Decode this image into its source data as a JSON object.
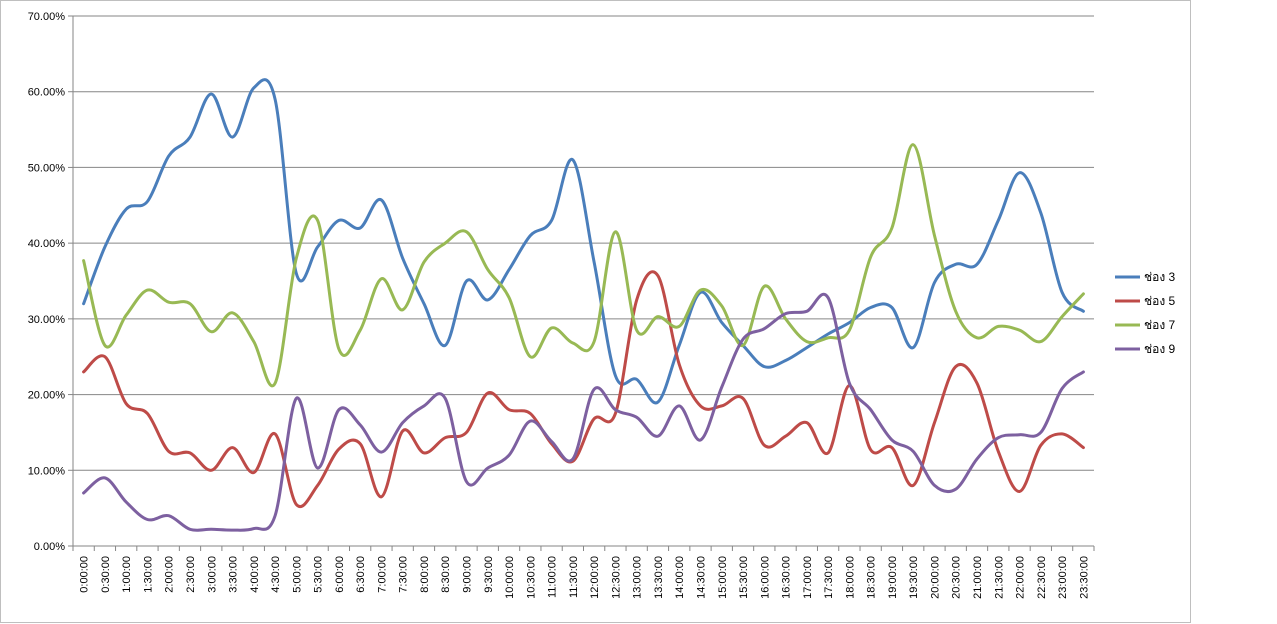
{
  "chart_data": {
    "type": "line",
    "title": "",
    "xlabel": "",
    "ylabel": "",
    "ylim": [
      0,
      0.7
    ],
    "y_ticks": [
      "0.00%",
      "10.00%",
      "20.00%",
      "30.00%",
      "40.00%",
      "50.00%",
      "60.00%",
      "70.00%"
    ],
    "grid": true,
    "legend_position": "right",
    "categories": [
      "0:00:00",
      "0:30:00",
      "1:00:00",
      "1:30:00",
      "2:00:00",
      "2:30:00",
      "3:00:00",
      "3:30:00",
      "4:00:00",
      "4:30:00",
      "5:00:00",
      "5:30:00",
      "6:00:00",
      "6:30:00",
      "7:00:00",
      "7:30:00",
      "8:00:00",
      "8:30:00",
      "9:00:00",
      "9:30:00",
      "10:00:00",
      "10:30:00",
      "11:00:00",
      "11:30:00",
      "12:00:00",
      "12:30:00",
      "13:00:00",
      "13:30:00",
      "14:00:00",
      "14:30:00",
      "15:00:00",
      "15:30:00",
      "16:00:00",
      "16:30:00",
      "17:00:00",
      "17:30:00",
      "18:00:00",
      "18:30:00",
      "19:00:00",
      "19:30:00",
      "20:00:00",
      "20:30:00",
      "21:00:00",
      "21:30:00",
      "22:00:00",
      "22:30:00",
      "23:00:00",
      "23:30:00"
    ],
    "series": [
      {
        "name": "ช่อง 3",
        "color": "#4a7ebb",
        "values": [
          0.32,
          0.395,
          0.445,
          0.455,
          0.515,
          0.54,
          0.597,
          0.54,
          0.605,
          0.59,
          0.36,
          0.395,
          0.43,
          0.42,
          0.457,
          0.38,
          0.32,
          0.265,
          0.35,
          0.325,
          0.365,
          0.41,
          0.43,
          0.51,
          0.375,
          0.225,
          0.22,
          0.19,
          0.265,
          0.335,
          0.295,
          0.265,
          0.237,
          0.245,
          0.262,
          0.28,
          0.295,
          0.315,
          0.315,
          0.262,
          0.348,
          0.372,
          0.372,
          0.43,
          0.493,
          0.44,
          0.335,
          0.31
        ]
      },
      {
        "name": "ช่อง 5",
        "color": "#be4b48",
        "values": [
          0.23,
          0.25,
          0.188,
          0.175,
          0.125,
          0.123,
          0.1,
          0.13,
          0.097,
          0.148,
          0.055,
          0.08,
          0.128,
          0.135,
          0.065,
          0.152,
          0.123,
          0.143,
          0.15,
          0.202,
          0.18,
          0.175,
          0.135,
          0.112,
          0.168,
          0.175,
          0.325,
          0.357,
          0.24,
          0.185,
          0.185,
          0.195,
          0.133,
          0.145,
          0.163,
          0.123,
          0.212,
          0.127,
          0.13,
          0.08,
          0.163,
          0.237,
          0.215,
          0.125,
          0.072,
          0.133,
          0.148,
          0.13
        ]
      },
      {
        "name": "ช่อง 7",
        "color": "#98b954",
        "values": [
          0.377,
          0.265,
          0.305,
          0.338,
          0.322,
          0.32,
          0.283,
          0.308,
          0.27,
          0.215,
          0.38,
          0.43,
          0.26,
          0.285,
          0.353,
          0.312,
          0.375,
          0.4,
          0.415,
          0.365,
          0.328,
          0.25,
          0.288,
          0.268,
          0.27,
          0.415,
          0.285,
          0.303,
          0.29,
          0.338,
          0.317,
          0.265,
          0.343,
          0.3,
          0.27,
          0.275,
          0.285,
          0.382,
          0.42,
          0.53,
          0.41,
          0.31,
          0.275,
          0.29,
          0.285,
          0.27,
          0.303,
          0.333
        ]
      },
      {
        "name": "ช่อง 9",
        "color": "#7d60a0",
        "values": [
          0.07,
          0.09,
          0.058,
          0.035,
          0.04,
          0.022,
          0.022,
          0.021,
          0.023,
          0.04,
          0.195,
          0.103,
          0.18,
          0.16,
          0.124,
          0.163,
          0.185,
          0.195,
          0.085,
          0.103,
          0.12,
          0.165,
          0.138,
          0.115,
          0.207,
          0.18,
          0.17,
          0.145,
          0.185,
          0.14,
          0.21,
          0.273,
          0.287,
          0.307,
          0.31,
          0.328,
          0.215,
          0.18,
          0.14,
          0.125,
          0.08,
          0.075,
          0.115,
          0.143,
          0.147,
          0.15,
          0.208,
          0.23
        ]
      }
    ]
  }
}
